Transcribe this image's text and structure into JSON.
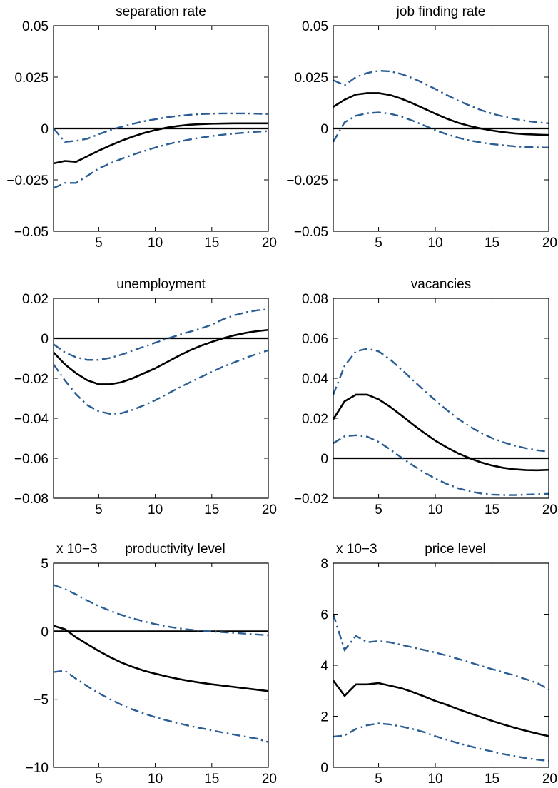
{
  "chart_data": [
    {
      "type": "line",
      "title": "separation rate",
      "exponent": "",
      "x": [
        1,
        2,
        3,
        4,
        5,
        6,
        7,
        8,
        9,
        10,
        11,
        12,
        13,
        14,
        15,
        16,
        17,
        18,
        19,
        20
      ],
      "xlim": [
        1,
        20
      ],
      "ylim": [
        -0.05,
        0.05
      ],
      "xticks": [
        5,
        10,
        15,
        20
      ],
      "xtick_labels": [
        "5",
        "10",
        "15",
        "20"
      ],
      "yticks": [
        -0.05,
        -0.025,
        0,
        0.025,
        0.05
      ],
      "ytick_labels": [
        "−0.05",
        "−0.025",
        "0",
        "0.025",
        "0.05"
      ],
      "zero_line": 0,
      "series": [
        {
          "role": "estimate",
          "values": [
            -0.017,
            -0.0158,
            -0.0162,
            -0.0135,
            -0.0108,
            -0.0083,
            -0.006,
            -0.004,
            -0.0022,
            -0.0008,
            0.0004,
            0.0012,
            0.0018,
            0.0021,
            0.0023,
            0.0024,
            0.0025,
            0.0025,
            0.0025,
            0.0025
          ]
        },
        {
          "role": "upper band",
          "values": [
            0.0,
            -0.0065,
            -0.006,
            -0.005,
            -0.0028,
            -0.0008,
            0.0008,
            0.0022,
            0.0035,
            0.0045,
            0.0054,
            0.0061,
            0.0066,
            0.007,
            0.0072,
            0.0073,
            0.0073,
            0.0073,
            0.0072,
            0.007
          ]
        },
        {
          "role": "lower band",
          "values": [
            -0.029,
            -0.0265,
            -0.0265,
            -0.023,
            -0.0195,
            -0.017,
            -0.0148,
            -0.0128,
            -0.011,
            -0.0093,
            -0.0078,
            -0.0065,
            -0.0054,
            -0.0045,
            -0.0037,
            -0.003,
            -0.0025,
            -0.002,
            -0.0016,
            -0.0013
          ]
        }
      ]
    },
    {
      "type": "line",
      "title": "job finding rate",
      "exponent": "",
      "x": [
        1,
        2,
        3,
        4,
        5,
        6,
        7,
        8,
        9,
        10,
        11,
        12,
        13,
        14,
        15,
        16,
        17,
        18,
        19,
        20
      ],
      "xlim": [
        1,
        20
      ],
      "ylim": [
        -0.05,
        0.05
      ],
      "xticks": [
        5,
        10,
        15,
        20
      ],
      "xtick_labels": [
        "5",
        "10",
        "15",
        "20"
      ],
      "yticks": [
        -0.05,
        -0.025,
        0,
        0.025,
        0.05
      ],
      "ytick_labels": [
        "−0.05",
        "−0.025",
        "0",
        "0.025",
        "0.05"
      ],
      "zero_line": 0,
      "series": [
        {
          "role": "estimate",
          "values": [
            0.0105,
            0.014,
            0.0165,
            0.0172,
            0.0172,
            0.0163,
            0.0145,
            0.0122,
            0.0097,
            0.0072,
            0.0048,
            0.0028,
            0.0012,
            0.0,
            -0.001,
            -0.0018,
            -0.0024,
            -0.0028,
            -0.003,
            -0.0032
          ]
        },
        {
          "role": "upper band",
          "values": [
            0.0235,
            0.021,
            0.025,
            0.027,
            0.0281,
            0.0278,
            0.0265,
            0.0245,
            0.022,
            0.0192,
            0.0163,
            0.0136,
            0.0112,
            0.009,
            0.0072,
            0.0058,
            0.0046,
            0.0037,
            0.003,
            0.0025
          ]
        },
        {
          "role": "lower band",
          "values": [
            -0.0065,
            0.003,
            0.0062,
            0.0074,
            0.0078,
            0.0072,
            0.0058,
            0.0038,
            0.0015,
            -0.0008,
            -0.0028,
            -0.0045,
            -0.0058,
            -0.0068,
            -0.0076,
            -0.0082,
            -0.0087,
            -0.009,
            -0.0092,
            -0.0093
          ]
        }
      ]
    },
    {
      "type": "line",
      "title": "unemployment",
      "exponent": "",
      "x": [
        1,
        2,
        3,
        4,
        5,
        6,
        7,
        8,
        9,
        10,
        11,
        12,
        13,
        14,
        15,
        16,
        17,
        18,
        19,
        20
      ],
      "xlim": [
        1,
        20
      ],
      "ylim": [
        -0.08,
        0.02
      ],
      "xticks": [
        5,
        10,
        15,
        20
      ],
      "xtick_labels": [
        "5",
        "10",
        "15",
        "20"
      ],
      "yticks": [
        -0.08,
        -0.06,
        -0.04,
        -0.02,
        0,
        0.02
      ],
      "ytick_labels": [
        "−0.08",
        "−0.06",
        "−0.04",
        "−0.02",
        "0",
        "0.02"
      ],
      "zero_line": 0,
      "series": [
        {
          "role": "estimate",
          "values": [
            -0.007,
            -0.013,
            -0.0175,
            -0.021,
            -0.023,
            -0.023,
            -0.022,
            -0.02,
            -0.0175,
            -0.015,
            -0.012,
            -0.009,
            -0.0062,
            -0.0038,
            -0.0018,
            0.0,
            0.0015,
            0.0027,
            0.0036,
            0.0042
          ]
        },
        {
          "role": "upper band",
          "values": [
            -0.003,
            -0.007,
            -0.0095,
            -0.0108,
            -0.0108,
            -0.0098,
            -0.0082,
            -0.0062,
            -0.0042,
            -0.0022,
            -0.0003,
            0.0015,
            0.0032,
            0.0048,
            0.0068,
            0.0095,
            0.0115,
            0.013,
            0.014,
            0.0145
          ]
        },
        {
          "role": "lower band",
          "values": [
            -0.013,
            -0.021,
            -0.028,
            -0.0335,
            -0.0365,
            -0.0378,
            -0.0375,
            -0.0358,
            -0.0335,
            -0.031,
            -0.028,
            -0.025,
            -0.0222,
            -0.0195,
            -0.0168,
            -0.0142,
            -0.012,
            -0.0098,
            -0.0078,
            -0.006
          ]
        }
      ]
    },
    {
      "type": "line",
      "title": "vacancies",
      "exponent": "",
      "x": [
        1,
        2,
        3,
        4,
        5,
        6,
        7,
        8,
        9,
        10,
        11,
        12,
        13,
        14,
        15,
        16,
        17,
        18,
        19,
        20
      ],
      "xlim": [
        1,
        20
      ],
      "ylim": [
        -0.02,
        0.08
      ],
      "xticks": [
        5,
        10,
        15,
        20
      ],
      "xtick_labels": [
        "5",
        "10",
        "15",
        "20"
      ],
      "yticks": [
        -0.02,
        0,
        0.02,
        0.04,
        0.06,
        0.08
      ],
      "ytick_labels": [
        "−0.02",
        "0",
        "0.02",
        "0.04",
        "0.06",
        "0.08"
      ],
      "zero_line": 0,
      "series": [
        {
          "role": "estimate",
          "values": [
            0.0195,
            0.0285,
            0.0318,
            0.0318,
            0.0295,
            0.0258,
            0.0215,
            0.017,
            0.0128,
            0.0088,
            0.0055,
            0.0025,
            0.0001,
            -0.002,
            -0.0036,
            -0.0048,
            -0.0055,
            -0.0059,
            -0.006,
            -0.0058
          ]
        },
        {
          "role": "upper band",
          "values": [
            0.0318,
            0.0462,
            0.0535,
            0.0548,
            0.0535,
            0.0495,
            0.0445,
            0.0392,
            0.034,
            0.029,
            0.0242,
            0.0198,
            0.016,
            0.0128,
            0.0101,
            0.008,
            0.0063,
            0.005,
            0.004,
            0.0033
          ]
        },
        {
          "role": "lower band",
          "values": [
            0.0075,
            0.011,
            0.0115,
            0.0108,
            0.0082,
            0.0045,
            0.0004,
            -0.0035,
            -0.007,
            -0.0102,
            -0.0128,
            -0.015,
            -0.0165,
            -0.0176,
            -0.0182,
            -0.0184,
            -0.0184,
            -0.0182,
            -0.018,
            -0.0178
          ]
        }
      ]
    },
    {
      "type": "line",
      "title": "productivity level",
      "exponent": "x 10−3",
      "x": [
        1,
        2,
        3,
        4,
        5,
        6,
        7,
        8,
        9,
        10,
        11,
        12,
        13,
        14,
        15,
        16,
        17,
        18,
        19,
        20
      ],
      "xlim": [
        1,
        20
      ],
      "ylim": [
        -10,
        5
      ],
      "xticks": [
        5,
        10,
        15,
        20
      ],
      "xtick_labels": [
        "5",
        "10",
        "15",
        "20"
      ],
      "yticks": [
        -10,
        -5,
        0,
        5
      ],
      "ytick_labels": [
        "−10",
        "−5",
        "0",
        "5"
      ],
      "zero_line": 0,
      "series": [
        {
          "role": "estimate",
          "values": [
            0.4,
            0.15,
            -0.45,
            -0.95,
            -1.45,
            -1.9,
            -2.3,
            -2.62,
            -2.9,
            -3.12,
            -3.32,
            -3.5,
            -3.65,
            -3.78,
            -3.9,
            -4.0,
            -4.1,
            -4.2,
            -4.3,
            -4.4
          ]
        },
        {
          "role": "upper band",
          "values": [
            3.4,
            3.1,
            2.7,
            2.25,
            1.85,
            1.5,
            1.2,
            0.95,
            0.72,
            0.52,
            0.36,
            0.22,
            0.12,
            0.04,
            -0.02,
            -0.07,
            -0.12,
            -0.18,
            -0.24,
            -0.3
          ]
        },
        {
          "role": "lower band",
          "values": [
            -3.0,
            -2.9,
            -3.5,
            -4.05,
            -4.55,
            -5.0,
            -5.4,
            -5.75,
            -6.05,
            -6.32,
            -6.55,
            -6.75,
            -6.95,
            -7.12,
            -7.28,
            -7.45,
            -7.6,
            -7.75,
            -7.9,
            -8.15
          ]
        }
      ]
    },
    {
      "type": "line",
      "title": "price level",
      "exponent": "x 10−3",
      "x": [
        1,
        2,
        3,
        4,
        5,
        6,
        7,
        8,
        9,
        10,
        11,
        12,
        13,
        14,
        15,
        16,
        17,
        18,
        19,
        20
      ],
      "xlim": [
        1,
        20
      ],
      "ylim": [
        0,
        8
      ],
      "xticks": [
        5,
        10,
        15,
        20
      ],
      "xtick_labels": [
        "5",
        "10",
        "15",
        "20"
      ],
      "yticks": [
        0,
        2,
        4,
        6,
        8
      ],
      "ytick_labels": [
        "0",
        "2",
        "4",
        "6",
        "8"
      ],
      "zero_line": null,
      "series": [
        {
          "role": "estimate",
          "values": [
            3.4,
            2.8,
            3.25,
            3.25,
            3.3,
            3.2,
            3.1,
            2.95,
            2.78,
            2.6,
            2.45,
            2.28,
            2.12,
            1.97,
            1.82,
            1.68,
            1.55,
            1.43,
            1.32,
            1.22
          ]
        },
        {
          "role": "upper band",
          "values": [
            6.0,
            4.6,
            5.15,
            4.9,
            4.95,
            4.9,
            4.8,
            4.7,
            4.6,
            4.5,
            4.38,
            4.25,
            4.12,
            3.98,
            3.85,
            3.72,
            3.6,
            3.45,
            3.3,
            3.05
          ]
        },
        {
          "role": "lower band",
          "values": [
            1.2,
            1.25,
            1.5,
            1.65,
            1.72,
            1.68,
            1.6,
            1.5,
            1.38,
            1.22,
            1.08,
            0.95,
            0.83,
            0.72,
            0.62,
            0.52,
            0.44,
            0.36,
            0.3,
            0.25
          ]
        }
      ]
    }
  ]
}
